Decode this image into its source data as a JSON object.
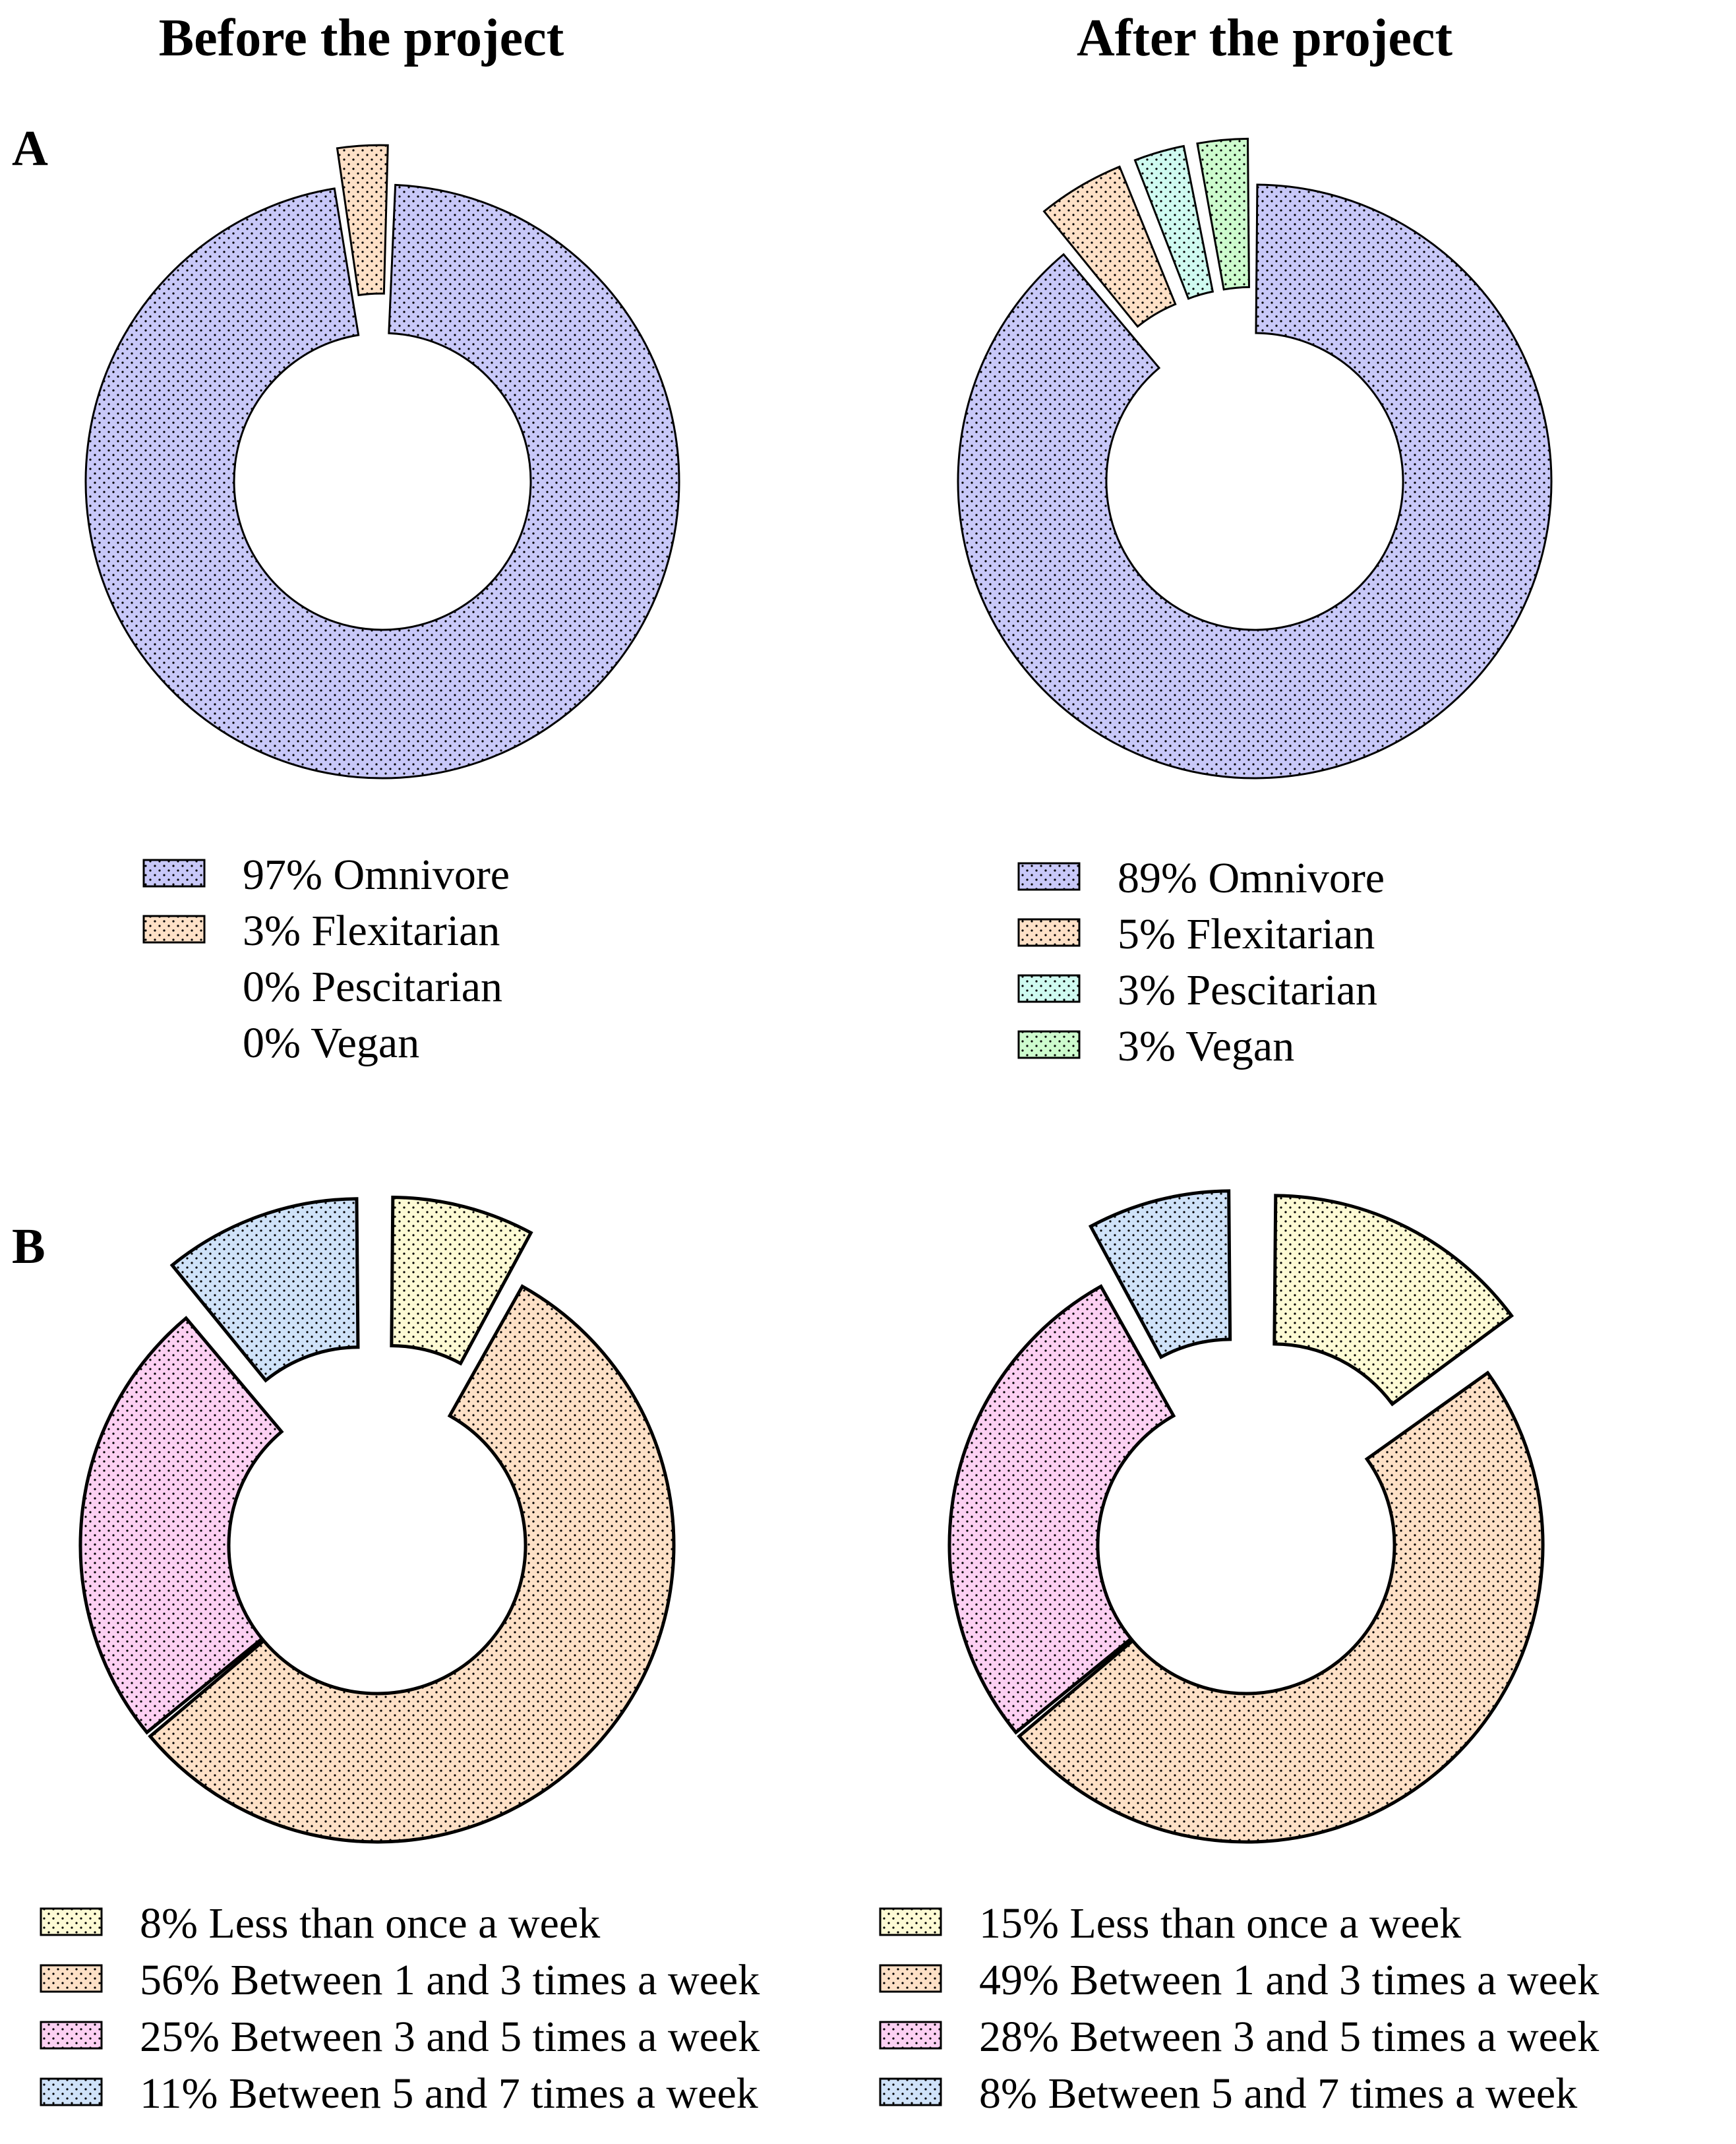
{
  "headers": {
    "before": "Before the project",
    "after": "After the project"
  },
  "panels": {
    "a": "A",
    "b": "B"
  },
  "colors": {
    "Omnivore": "#c8c8f8",
    "Flexitarian": "#fde0c6",
    "Pescitarian": "#cffaf0",
    "Vegan": "#cdfbcd",
    "Less than once a week": "#fdfad4",
    "Between 1 and 3 times a week": "#fde0c6",
    "Between 3 and 5 times a week": "#fcd0f2",
    "Between 5 and 7 times a week": "#cfe2f8",
    "outline": "#000000"
  },
  "chart_data": [
    {
      "type": "pie",
      "subtype": "donut",
      "panel": "A",
      "column": "Before the project",
      "series": [
        {
          "name": "Omnivore",
          "value": 97,
          "label": "97%  Omnivore",
          "exploded": false
        },
        {
          "name": "Flexitarian",
          "value": 3,
          "label": "3%  Flexitarian",
          "exploded": true
        },
        {
          "name": "Pescitarian",
          "value": 0,
          "label": "0%  Pescitarian",
          "exploded": false
        },
        {
          "name": "Vegan",
          "value": 0,
          "label": "0%  Vegan",
          "exploded": false
        }
      ]
    },
    {
      "type": "pie",
      "subtype": "donut",
      "panel": "A",
      "column": "After the project",
      "series": [
        {
          "name": "Omnivore",
          "value": 89,
          "label": "89%  Omnivore",
          "exploded": false
        },
        {
          "name": "Flexitarian",
          "value": 5,
          "label": "5%  Flexitarian",
          "exploded": true
        },
        {
          "name": "Pescitarian",
          "value": 3,
          "label": "3%  Pescitarian",
          "exploded": true
        },
        {
          "name": "Vegan",
          "value": 3,
          "label": "3%  Vegan",
          "exploded": true
        }
      ]
    },
    {
      "type": "pie",
      "subtype": "donut",
      "panel": "B",
      "column": "Before the project",
      "series": [
        {
          "name": "Less than once a week",
          "value": 8,
          "label": "8%  Less than once a week",
          "exploded": true
        },
        {
          "name": "Between 1 and 3 times a week",
          "value": 56,
          "label": "56%  Between 1 and 3 times a week",
          "exploded": false
        },
        {
          "name": "Between 3 and 5 times a week",
          "value": 25,
          "label": "25%  Between 3 and 5 times a week",
          "exploded": false
        },
        {
          "name": "Between 5 and 7 times a week",
          "value": 11,
          "label": "11%  Between 5 and 7 times a week",
          "exploded": true
        }
      ]
    },
    {
      "type": "pie",
      "subtype": "donut",
      "panel": "B",
      "column": "After the project",
      "series": [
        {
          "name": "Less than once a week",
          "value": 15,
          "label": "15%  Less than once a week",
          "exploded": true
        },
        {
          "name": "Between 1 and 3 times a week",
          "value": 49,
          "label": "49%  Between 1 and 3 times a week",
          "exploded": false
        },
        {
          "name": "Between 3 and 5 times a week",
          "value": 28,
          "label": "28%  Between 3 and 5 times a week",
          "exploded": false
        },
        {
          "name": "Between 5 and 7 times a week",
          "value": 8,
          "label": "8%  Between 5 and 7 times a week",
          "exploded": true
        }
      ]
    }
  ]
}
